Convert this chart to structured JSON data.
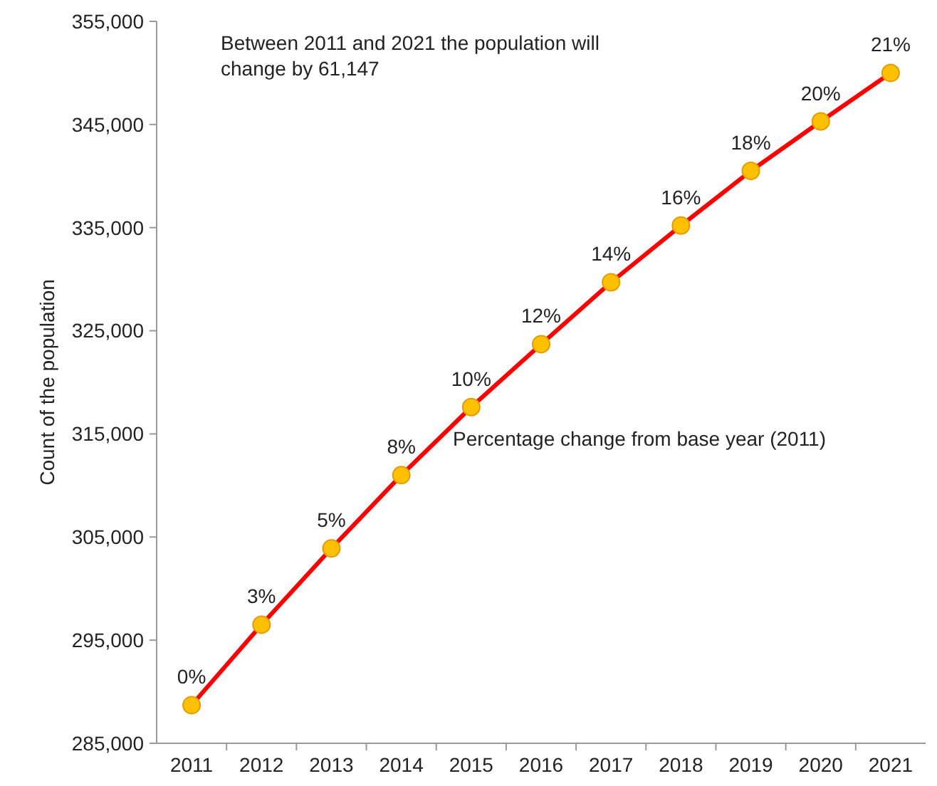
{
  "chart_data": {
    "type": "line",
    "ylabel": "Count of the population",
    "categories": [
      "2011",
      "2012",
      "2013",
      "2014",
      "2015",
      "2016",
      "2017",
      "2018",
      "2019",
      "2020",
      "2021"
    ],
    "series": [
      {
        "color": "#ff0000",
        "values": [
          288700,
          296500,
          303900,
          311000,
          317600,
          323700,
          329700,
          335200,
          340500,
          345300,
          350000
        ]
      }
    ],
    "ylim": [
      285000,
      355000
    ],
    "yticks": [
      {
        "value": 285000,
        "label": "285,000"
      },
      {
        "value": 295000,
        "label": "295,000"
      },
      {
        "value": 305000,
        "label": "305,000"
      },
      {
        "value": 315000,
        "label": "315,000"
      },
      {
        "value": 325000,
        "label": "325,000"
      },
      {
        "value": 335000,
        "label": "335,000"
      },
      {
        "value": 345000,
        "label": "345,000"
      },
      {
        "value": 355000,
        "label": "355,000"
      }
    ],
    "marker": "circle",
    "line_style": "solid",
    "grid": false,
    "annotations": [
      "Between 2011 and 2021 the population will change by 61,147",
      "Percentage change from base year (2011)",
      {
        "text": "0%",
        "x": "2011",
        "y": 288700
      },
      {
        "text": "3%",
        "x": "2012",
        "y": 296500
      },
      {
        "text": "5%",
        "x": "2013",
        "y": 303900
      },
      {
        "text": "8%",
        "x": "2014",
        "y": 311000
      },
      {
        "text": "10%",
        "x": "2015",
        "y": 317600
      },
      {
        "text": "12%",
        "x": "2016",
        "y": 323700
      },
      {
        "text": "14%",
        "x": "2017",
        "y": 329700
      },
      {
        "text": "16%",
        "x": "2018",
        "y": 335200
      },
      {
        "text": "18%",
        "x": "2019",
        "y": 340500
      },
      {
        "text": "20%",
        "x": "2020",
        "y": 345300
      },
      {
        "text": "21%",
        "x": "2021",
        "y": 350000
      }
    ]
  }
}
